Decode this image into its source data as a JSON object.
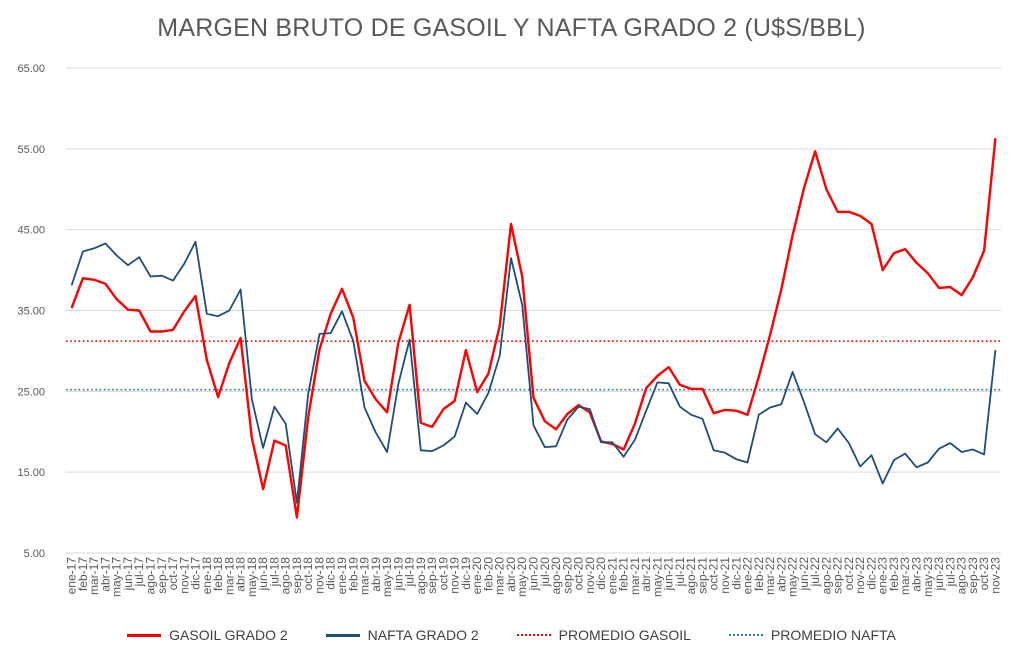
{
  "chart_data": {
    "type": "line",
    "title": "MARGEN BRUTO DE GASOIL Y NAFTA GRADO 2 (U$S/BBL)",
    "xlabel": "",
    "ylabel": "",
    "ylim": [
      5,
      65
    ],
    "yticks": [
      "5.00",
      "15.00",
      "25.00",
      "35.00",
      "45.00",
      "55.00",
      "65.00"
    ],
    "grid": true,
    "legend_position": "bottom",
    "categories": [
      "ene-17",
      "feb-17",
      "mar-17",
      "abr-17",
      "may-17",
      "jun-17",
      "jul-17",
      "ago-17",
      "sep-17",
      "oct-17",
      "nov-17",
      "dic-17",
      "ene-18",
      "feb-18",
      "mar-18",
      "abr-18",
      "may-18",
      "jun-18",
      "jul-18",
      "ago-18",
      "sep-18",
      "oct-18",
      "nov-18",
      "dic-18",
      "ene-19",
      "feb-19",
      "mar-19",
      "abr-19",
      "may-19",
      "jun-19",
      "jul-19",
      "ago-19",
      "sep-19",
      "oct-19",
      "nov-19",
      "dic-19",
      "ene-20",
      "feb-20",
      "mar-20",
      "abr-20",
      "may-20",
      "jun-20",
      "jul-20",
      "ago-20",
      "sep-20",
      "oct-20",
      "nov-20",
      "dic-20",
      "ene-21",
      "feb-21",
      "mar-21",
      "abr-21",
      "may-21",
      "jun-21",
      "jul-21",
      "ago-21",
      "sep-21",
      "oct-21",
      "nov-21",
      "dic-21",
      "ene-22",
      "feb-22",
      "mar-22",
      "abr-22",
      "may-22",
      "jun-22",
      "jul-22",
      "ago-22",
      "sep-22",
      "oct-22",
      "nov-22",
      "dic-22",
      "ene-23",
      "feb-23",
      "mar-23",
      "abr-23",
      "may-23",
      "jun-23",
      "jul-23",
      "ago-23",
      "sep-23",
      "oct-23",
      "nov-23"
    ],
    "series": [
      {
        "name": "GASOIL GRADO 2",
        "color": "#ff0000",
        "style": "solid",
        "values": [
          35.3,
          39.0,
          38.8,
          38.3,
          36.4,
          35.1,
          35.0,
          32.4,
          32.4,
          32.6,
          34.9,
          36.8,
          28.9,
          24.3,
          28.5,
          31.6,
          19.2,
          12.9,
          18.9,
          18.3,
          9.4,
          21.8,
          30.2,
          34.6,
          37.7,
          34.1,
          26.3,
          24.0,
          22.4,
          31.0,
          35.7,
          21.1,
          20.6,
          22.8,
          23.8,
          30.1,
          24.9,
          27.2,
          33.1,
          45.7,
          39.2,
          24.2,
          21.3,
          20.3,
          22.2,
          23.3,
          22.4,
          18.8,
          18.5,
          17.8,
          21.0,
          25.4,
          26.9,
          28.0,
          25.8,
          25.3,
          25.3,
          22.3,
          22.7,
          22.6,
          22.1,
          26.8,
          32.0,
          37.6,
          44.3,
          50.1,
          54.7,
          50.0,
          47.2,
          47.2,
          46.7,
          45.7,
          40.0,
          42.1,
          42.6,
          40.9,
          39.6,
          37.8,
          37.9,
          36.9,
          39.1,
          42.4,
          56.3
        ]
      },
      {
        "name": "NAFTA GRADO 2",
        "color": "#1f4e79",
        "style": "solid",
        "values": [
          38.1,
          42.3,
          42.7,
          43.3,
          41.8,
          40.6,
          41.6,
          39.2,
          39.3,
          38.7,
          40.8,
          43.5,
          34.6,
          34.3,
          35.0,
          37.6,
          24.0,
          18.0,
          23.1,
          21.0,
          11.2,
          24.7,
          32.1,
          32.2,
          34.9,
          31.2,
          23.0,
          19.9,
          17.5,
          25.9,
          31.4,
          17.7,
          17.6,
          18.3,
          19.4,
          23.6,
          22.2,
          24.8,
          29.4,
          41.5,
          35.7,
          20.8,
          18.1,
          18.2,
          21.5,
          23.1,
          22.8,
          18.7,
          18.7,
          16.9,
          19.0,
          22.6,
          26.1,
          26.0,
          23.1,
          22.1,
          21.6,
          17.7,
          17.4,
          16.6,
          16.2,
          22.1,
          23.0,
          23.4,
          27.4,
          23.7,
          19.7,
          18.7,
          20.4,
          18.6,
          15.7,
          17.1,
          13.6,
          16.5,
          17.3,
          15.6,
          16.2,
          17.9,
          18.6,
          17.5,
          17.8,
          17.2,
          30.1
        ]
      },
      {
        "name": "PROMEDIO GASOIL",
        "color": "#ff0000",
        "style": "dotted",
        "value": 31.2
      },
      {
        "name": "PROMEDIO NAFTA",
        "color": "#2e75b6",
        "style": "dotted",
        "value": 25.2
      }
    ]
  }
}
